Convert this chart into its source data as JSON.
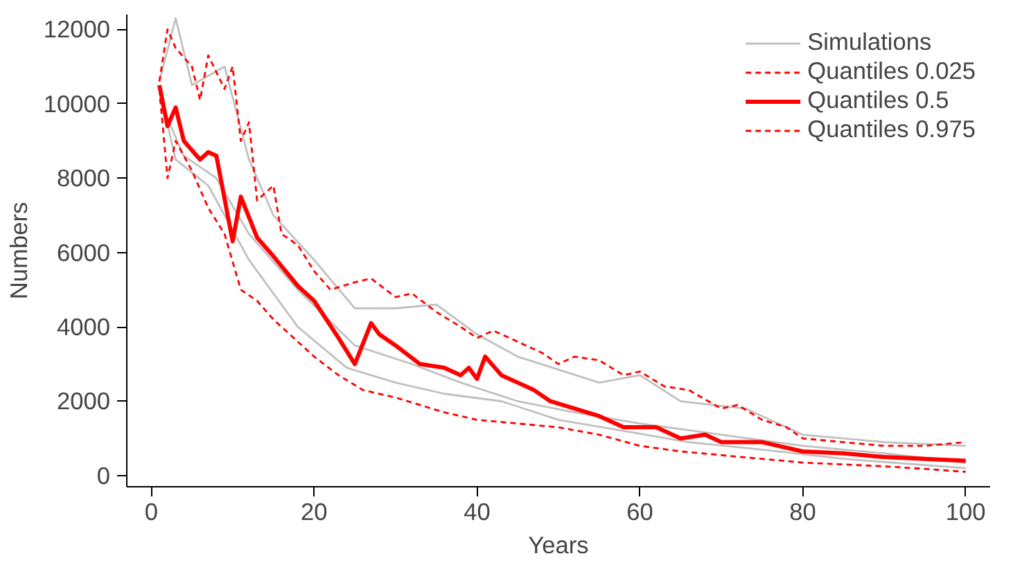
{
  "chart_data": {
    "type": "line",
    "xlabel": "Years",
    "ylabel": "Numbers",
    "xlim": [
      -3,
      103
    ],
    "ylim": [
      -300,
      12400
    ],
    "xticks": [
      0,
      20,
      40,
      60,
      80,
      100
    ],
    "yticks": [
      0,
      2000,
      4000,
      6000,
      8000,
      10000,
      12000
    ],
    "grid": false,
    "legend": "top right",
    "marker": "none",
    "series": [
      {
        "name": "Simulations",
        "color": "#c0c0c0",
        "line_style": "solid",
        "x": [
          1,
          3,
          5,
          9,
          12,
          15,
          20,
          25,
          30,
          35,
          40,
          45,
          55,
          60,
          65,
          73,
          80,
          90,
          100
        ],
        "values": [
          10600,
          12300,
          10500,
          11000,
          8500,
          7000,
          5800,
          4500,
          4500,
          4600,
          3800,
          3200,
          2500,
          2700,
          2000,
          1800,
          1100,
          900,
          800
        ]
      },
      {
        "color": "#c0c0c0",
        "line_style": "solid",
        "x": [
          1,
          4,
          8,
          12,
          18,
          25,
          32,
          38,
          45,
          52,
          60,
          70,
          80,
          90,
          100
        ],
        "values": [
          10100,
          8600,
          8000,
          6500,
          5000,
          3500,
          3000,
          2500,
          2000,
          1700,
          1400,
          1100,
          800,
          600,
          350
        ]
      },
      {
        "color": "#c0c0c0",
        "line_style": "solid",
        "x": [
          1,
          3,
          7,
          12,
          18,
          24,
          30,
          36,
          43,
          50,
          58,
          66,
          75,
          85,
          100
        ],
        "values": [
          10400,
          8500,
          7800,
          5800,
          4000,
          2900,
          2500,
          2200,
          2000,
          1500,
          1200,
          900,
          700,
          450,
          200
        ]
      },
      {
        "name": "Quantiles 0.025",
        "color": "#ff0000",
        "line_style": "dashed",
        "x": [
          1,
          2,
          3,
          5,
          7,
          9,
          11,
          13,
          15,
          17,
          20,
          23,
          26,
          30,
          33,
          36,
          40,
          45,
          50,
          55,
          60,
          65,
          70,
          75,
          80,
          85,
          90,
          95,
          100
        ],
        "values": [
          10400,
          8000,
          9000,
          8200,
          7200,
          6500,
          5000,
          4700,
          4200,
          3800,
          3200,
          2700,
          2300,
          2100,
          1900,
          1700,
          1500,
          1400,
          1300,
          1100,
          800,
          650,
          550,
          450,
          350,
          300,
          250,
          180,
          100
        ]
      },
      {
        "name": "Quantiles 0.5",
        "color": "#ff0000",
        "line_style": "solid",
        "x": [
          1,
          2,
          3,
          4,
          6,
          7,
          8,
          10,
          11,
          13,
          15,
          18,
          20,
          23,
          25,
          27,
          28,
          30,
          33,
          36,
          38,
          39,
          40,
          41,
          43,
          45,
          47,
          49,
          52,
          55,
          58,
          62,
          65,
          68,
          70,
          75,
          80,
          85,
          90,
          95,
          100
        ],
        "values": [
          10500,
          9400,
          9900,
          9000,
          8500,
          8700,
          8600,
          6300,
          7500,
          6400,
          5900,
          5100,
          4700,
          3700,
          3000,
          4100,
          3800,
          3500,
          3000,
          2900,
          2700,
          2900,
          2600,
          3200,
          2700,
          2500,
          2300,
          2000,
          1800,
          1600,
          1300,
          1300,
          1000,
          1100,
          900,
          900,
          650,
          600,
          500,
          450,
          400
        ]
      },
      {
        "name": "Quantiles 0.975",
        "color": "#ff0000",
        "line_style": "dashed",
        "x": [
          1,
          2,
          3,
          5,
          6,
          7,
          9,
          10,
          11,
          12,
          13,
          15,
          16,
          18,
          20,
          22,
          25,
          27,
          30,
          32,
          35,
          38,
          40,
          42,
          45,
          48,
          50,
          52,
          55,
          58,
          60,
          63,
          66,
          70,
          72,
          75,
          78,
          80,
          85,
          90,
          95,
          100
        ],
        "values": [
          10600,
          12000,
          11500,
          11000,
          10100,
          11300,
          10400,
          11000,
          9000,
          9500,
          7400,
          7800,
          6500,
          6200,
          5500,
          5000,
          5200,
          5300,
          4800,
          4900,
          4400,
          4000,
          3700,
          3900,
          3600,
          3300,
          3000,
          3200,
          3100,
          2700,
          2800,
          2400,
          2300,
          1800,
          1900,
          1500,
          1300,
          1000,
          900,
          800,
          800,
          900
        ]
      }
    ]
  }
}
